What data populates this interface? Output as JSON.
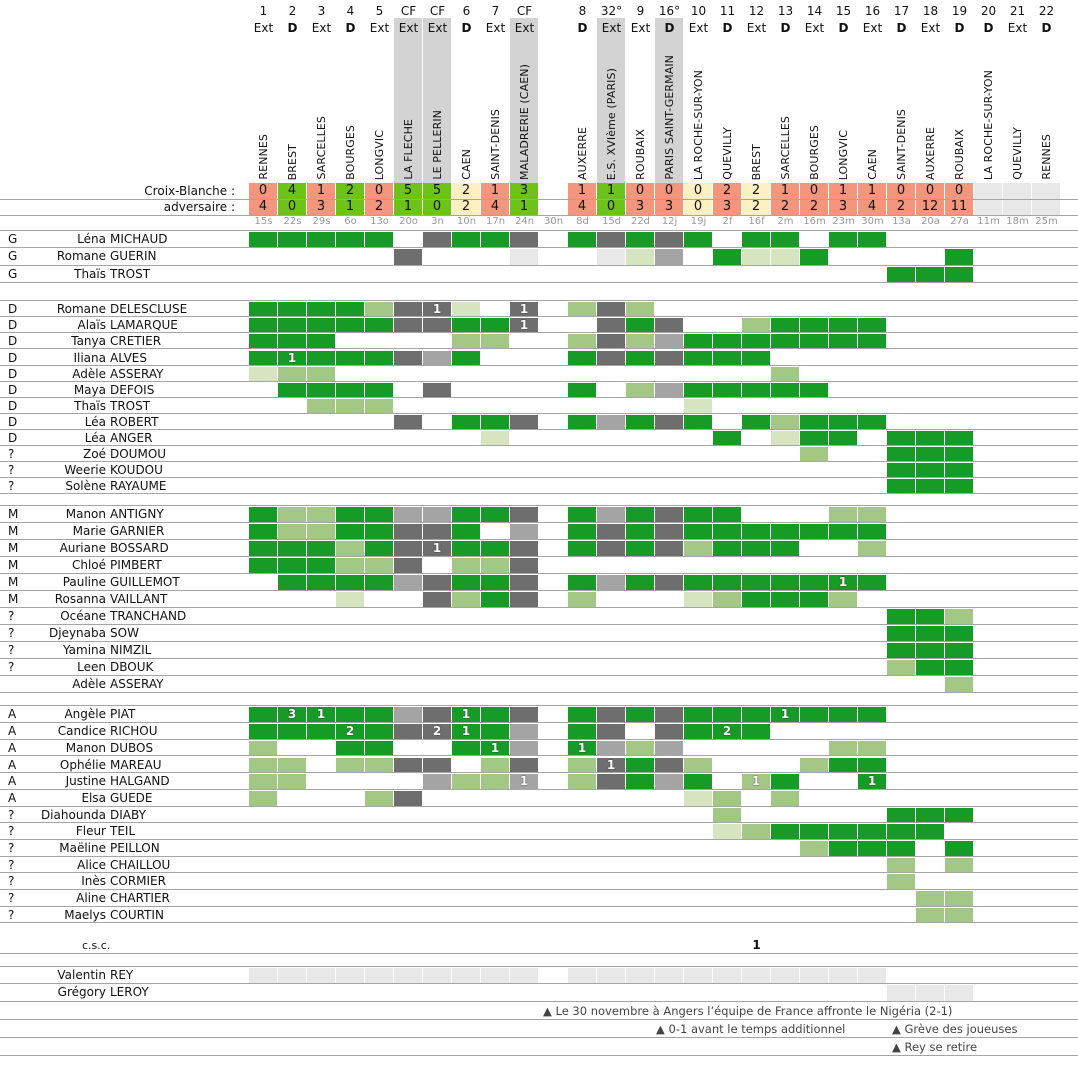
{
  "labels": {
    "club": "Croix-Blanche :",
    "opponent": "adversaire :"
  },
  "palette": {
    "G": "#169b27",
    "g": "#a3c784",
    "l": "#d6e4c0",
    "D": "#6e6e6e",
    "m": "#a4a4a4",
    "e": "#e8e8e8",
    "win": "#6dc31a",
    "loss": "#f4967e",
    "draw": "#fdf1c4",
    "pending": "#e8e8e8",
    "header_highlight": "#d3d3d3"
  },
  "columns": [
    {
      "num": "1",
      "type": "Ext",
      "team": "RENNES",
      "cb": "0",
      "adv": "4",
      "result": "loss",
      "date": "15s"
    },
    {
      "num": "2",
      "type": "D",
      "team": "BREST",
      "cb": "4",
      "adv": "0",
      "result": "win",
      "date": "22s"
    },
    {
      "num": "3",
      "type": "Ext",
      "team": "SARCELLES",
      "cb": "1",
      "adv": "3",
      "result": "loss",
      "date": "29s"
    },
    {
      "num": "4",
      "type": "D",
      "team": "BOURGES",
      "cb": "2",
      "adv": "1",
      "result": "win",
      "date": "6o"
    },
    {
      "num": "5",
      "type": "Ext",
      "team": "LONGVIC",
      "cb": "0",
      "adv": "2",
      "result": "loss",
      "date": "13o"
    },
    {
      "num": "CF",
      "type": "Ext",
      "team": "LA FLECHE",
      "cb": "5",
      "adv": "1",
      "result": "win",
      "date": "20o",
      "highlight": true
    },
    {
      "num": "CF",
      "type": "Ext",
      "team": "LE PELLERIN",
      "cb": "5",
      "adv": "0",
      "result": "win",
      "date": "3n",
      "highlight": true
    },
    {
      "num": "6",
      "type": "D",
      "team": "CAEN",
      "cb": "2",
      "adv": "2",
      "result": "draw",
      "date": "10n"
    },
    {
      "num": "7",
      "type": "Ext",
      "team": "SAINT-DENIS",
      "cb": "1",
      "adv": "4",
      "result": "loss",
      "date": "17n"
    },
    {
      "num": "CF",
      "type": "Ext",
      "team": "MALADRERIE (CAEN)",
      "cb": "3",
      "adv": "1",
      "result": "win",
      "date": "24n",
      "highlight": true
    },
    {
      "num": "",
      "type": "",
      "team": "",
      "cb": "",
      "adv": "",
      "result": "none",
      "date": "30n"
    },
    {
      "num": "8",
      "type": "D",
      "team": "AUXERRE",
      "cb": "1",
      "adv": "4",
      "result": "loss",
      "date": "8d"
    },
    {
      "num": "32°",
      "type": "Ext",
      "team": "E.S. XVIème (PARIS)",
      "cb": "1",
      "adv": "0",
      "result": "win",
      "date": "15d",
      "highlight": true
    },
    {
      "num": "9",
      "type": "Ext",
      "team": "ROUBAIX",
      "cb": "0",
      "adv": "3",
      "result": "loss",
      "date": "22d"
    },
    {
      "num": "16°",
      "type": "D",
      "team": "PARIS SAINT-GERMAIN",
      "cb": "0",
      "adv": "3",
      "result": "loss",
      "date": "12j",
      "highlight": true
    },
    {
      "num": "10",
      "type": "Ext",
      "team": "LA ROCHE-SUR-YON",
      "cb": "0",
      "adv": "0",
      "result": "draw",
      "date": "19j"
    },
    {
      "num": "11",
      "type": "D",
      "team": "QUEVILLY",
      "cb": "2",
      "adv": "3",
      "result": "loss",
      "date": "2f"
    },
    {
      "num": "12",
      "type": "Ext",
      "team": "BREST",
      "cb": "2",
      "adv": "2",
      "result": "draw",
      "date": "16f"
    },
    {
      "num": "13",
      "type": "D",
      "team": "SARCELLES",
      "cb": "1",
      "adv": "2",
      "result": "loss",
      "date": "2m"
    },
    {
      "num": "14",
      "type": "Ext",
      "team": "BOURGES",
      "cb": "0",
      "adv": "2",
      "result": "loss",
      "date": "16m"
    },
    {
      "num": "15",
      "type": "D",
      "team": "LONGVIC",
      "cb": "1",
      "adv": "3",
      "result": "loss",
      "date": "23m"
    },
    {
      "num": "16",
      "type": "Ext",
      "team": "CAEN",
      "cb": "1",
      "adv": "4",
      "result": "loss",
      "date": "30m"
    },
    {
      "num": "17",
      "type": "D",
      "team": "SAINT-DENIS",
      "cb": "0",
      "adv": "2",
      "result": "loss",
      "date": "13a"
    },
    {
      "num": "18",
      "type": "Ext",
      "team": "AUXERRE",
      "cb": "0",
      "adv": "12",
      "result": "loss",
      "date": "20a"
    },
    {
      "num": "19",
      "type": "D",
      "team": "ROUBAIX",
      "cb": "0",
      "adv": "11",
      "result": "loss",
      "date": "27a"
    },
    {
      "num": "20",
      "type": "D",
      "team": "LA ROCHE-SUR-YON",
      "cb": "",
      "adv": "",
      "result": "pending",
      "date": "11m"
    },
    {
      "num": "21",
      "type": "Ext",
      "team": "QUEVILLY",
      "cb": "",
      "adv": "",
      "result": "pending",
      "date": "18m"
    },
    {
      "num": "22",
      "type": "D",
      "team": "RENNES",
      "cb": "",
      "adv": "",
      "result": "pending",
      "date": "25m"
    }
  ],
  "sections": [
    {
      "players": [
        {
          "pos": "G",
          "first": "Léna",
          "last": "MICHAUD",
          "cells": "GGGGG.DGGD.GDGDG.GG.GG......"
        },
        {
          "pos": "G",
          "first": "Romane",
          "last": "GUERIN",
          "cells": ".....D...e..elm.GllG....G..."
        },
        {
          "pos": "G",
          "first": "Thaïs",
          "last": "TROST",
          "cells": "......................GGG..."
        }
      ]
    },
    {
      "players": [
        {
          "pos": "D",
          "first": "Romane",
          "last": "DELESCLUSE",
          "cells": "GGGGgDDl.D.gDg..............",
          "goals": {
            "6": 1,
            "9": 1
          }
        },
        {
          "pos": "D",
          "first": "Alaïs",
          "last": "LAMARQUE",
          "cells": "GGGGGDDGGD..DGD..gGGGG......",
          "goals": {
            "9": 1
          }
        },
        {
          "pos": "D",
          "first": "Tanya",
          "last": "CRETIER",
          "cells": "GGG....gg..gDgmGGGGGGG......"
        },
        {
          "pos": "D",
          "first": "Iliana",
          "last": "ALVES",
          "cells": "GGGGGDmG...GDGDGGG..........",
          "goals": {
            "1": 1
          }
        },
        {
          "pos": "D",
          "first": "Adèle",
          "last": "ASSERAY",
          "cells": "lgg...............g........."
        },
        {
          "pos": "D",
          "first": "Maya",
          "last": "DEFOIS",
          "cells": ".GGGG.D....G.gmGGGGG........"
        },
        {
          "pos": "D",
          "first": "Thaïs",
          "last": "TROST",
          "cells": "..ggg..........l............"
        },
        {
          "pos": "D",
          "first": "Léa",
          "last": "ROBERT",
          "cells": ".....D.GGD.GmGDG.GgGGG......"
        },
        {
          "pos": "D",
          "first": "Léa",
          "last": "ANGER",
          "cells": "........l.......G.lGG.GGG..."
        },
        {
          "pos": "?",
          "first": "Zoé",
          "last": "DOUMOU",
          "cells": "...................g..GGG..."
        },
        {
          "pos": "?",
          "first": "Weerie",
          "last": "KOUDOU",
          "cells": "......................GGG..."
        },
        {
          "pos": "?",
          "first": "Solène",
          "last": "RAYAUME",
          "cells": "......................GGG..."
        }
      ]
    },
    {
      "players": [
        {
          "pos": "M",
          "first": "Manon",
          "last": "ANTIGNY",
          "cells": "GggGGmmGGD.GmGDGG...gg......"
        },
        {
          "pos": "M",
          "first": "Marie",
          "last": "GARNIER",
          "cells": "GggGGDDG.m.GDGDGGGGGGG......"
        },
        {
          "pos": "M",
          "first": "Auriane",
          "last": "BOSSARD",
          "cells": "GGGgGDDGGD.GDGDgGGG..g......",
          "goals": {
            "6": 1
          }
        },
        {
          "pos": "M",
          "first": "Chloé",
          "last": "PIMBERT",
          "cells": "GGGggD.ggD.................."
        },
        {
          "pos": "M",
          "first": "Pauline",
          "last": "GUILLEMOT",
          "cells": ".GGGGmDGGD.GmGDGGGGGGG......",
          "goals": {
            "20": 1
          }
        },
        {
          "pos": "M",
          "first": "Rosanna",
          "last": "VAILLANT",
          "cells": "...l..DgGD.g...lgGGGg......."
        },
        {
          "pos": "?",
          "first": "Océane",
          "last": "TRANCHAND",
          "cells": "......................GGg..."
        },
        {
          "pos": "?",
          "first": "Djeynaba",
          "last": "SOW",
          "cells": "......................GGG..."
        },
        {
          "pos": "?",
          "first": "Yamina",
          "last": "NIMZIL",
          "cells": "......................GGG..."
        },
        {
          "pos": "?",
          "first": "Leen",
          "last": "DBOUK",
          "cells": "......................gGG..."
        },
        {
          "pos": "",
          "first": "Adèle",
          "last": "ASSERAY",
          "cells": "........................g..."
        }
      ]
    },
    {
      "players": [
        {
          "pos": "A",
          "first": "Angèle",
          "last": "PIAT",
          "cells": "GGGGGmDGGD.GDGDGGGGGGG......",
          "goals": {
            "1": 3,
            "2": 1,
            "7": 1,
            "18": 1
          }
        },
        {
          "pos": "A",
          "first": "Candice",
          "last": "RICHOU",
          "cells": "GGGGGDDGGm.GD.DGGG..........",
          "goals": {
            "3": 2,
            "6": 2,
            "7": 1,
            "16": 2
          }
        },
        {
          "pos": "A",
          "first": "Manon",
          "last": "DUBOS",
          "cells": "g..GG..GGm.Gmgm.....gg......",
          "goals": {
            "8": 1,
            "11": 1
          }
        },
        {
          "pos": "A",
          "first": "Ophélie",
          "last": "MAREAU",
          "cells": "gg.ggDD.gD.gDGDg...gGG......",
          "goals": {
            "12": 1
          }
        },
        {
          "pos": "A",
          "first": "Justine",
          "last": "HALGAND",
          "cells": "gg....mggm.gDGmG.gG..G......",
          "goals": {
            "9": 1,
            "17": 1,
            "21": 1
          }
        },
        {
          "pos": "A",
          "first": "Elsa",
          "last": "GUEDE",
          "cells": "g...gD.........lg.g........."
        },
        {
          "pos": "?",
          "first": "Diahounda",
          "last": "DIABY",
          "cells": "................g.....GGG..."
        },
        {
          "pos": "?",
          "first": "Fleur",
          "last": "TEIL",
          "cells": "................lgGGGGGG...."
        },
        {
          "pos": "?",
          "first": "Maëline",
          "last": "PEILLON",
          "cells": "...................gGGG.G..."
        },
        {
          "pos": "?",
          "first": "Alice",
          "last": "CHAILLOU",
          "cells": "......................g.g..."
        },
        {
          "pos": "?",
          "first": "Inès",
          "last": "CORMIER",
          "cells": "......................g....."
        },
        {
          "pos": "?",
          "first": "Aline",
          "last": "CHARTIER",
          "cells": ".......................gg..."
        },
        {
          "pos": "?",
          "first": "Maelys",
          "last": "COURTIN",
          "cells": ".......................gg..."
        }
      ]
    }
  ],
  "own_goals": {
    "label": "c.s.c.",
    "goals": {
      "17": 1
    }
  },
  "staff": [
    {
      "first": "Valentin",
      "last": "REY",
      "cells": "eeeeeeeeee.eeeeeeeeeee......"
    },
    {
      "first": "Grégory",
      "last": "LEROY",
      "cells": "......................eee..."
    }
  ],
  "notes": [
    "▲ Le 30 novembre à Angers l’équipe de France affronte le Nigéria (2-1)",
    "▲ 0-1 avant le temps additionnel",
    "▲ Grève des joueuses",
    "▲ Rey se retire"
  ]
}
